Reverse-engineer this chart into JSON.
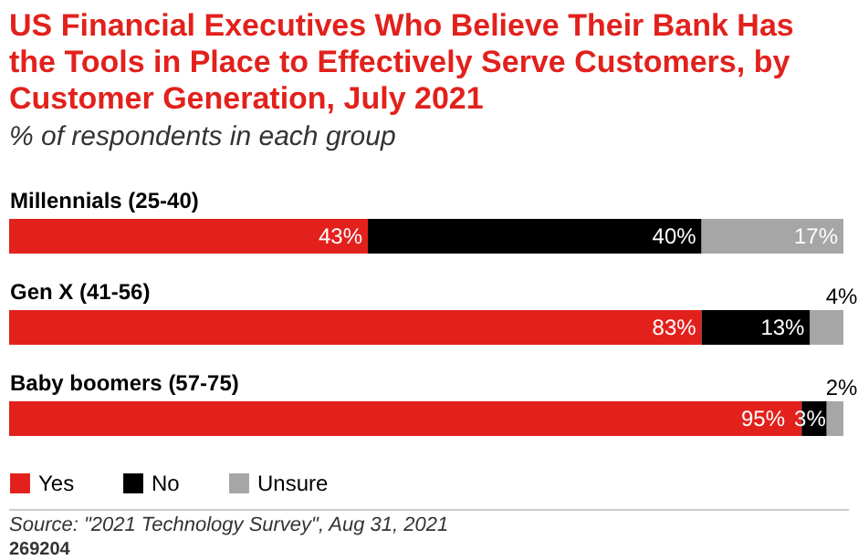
{
  "chart_data": {
    "type": "bar",
    "orientation": "horizontal",
    "stacked": true,
    "title": "US Financial Executives Who Believe Their Bank Has the Tools in Place to Effectively Serve Customers, by Customer Generation, July 2021",
    "subtitle": "% of respondents in each group",
    "categories": [
      "Millennials (25-40)",
      "Gen X (41-56)",
      "Baby boomers (57-75)"
    ],
    "series": [
      {
        "name": "Yes",
        "color": "#e2211c",
        "values": [
          43,
          83,
          95
        ],
        "value_labels": [
          "43%",
          "83%",
          "95%"
        ]
      },
      {
        "name": "No",
        "color": "#000000",
        "values": [
          40,
          13,
          3
        ],
        "value_labels": [
          "40%",
          "13%",
          "3%"
        ]
      },
      {
        "name": "Unsure",
        "color": "#a6a6a6",
        "values": [
          17,
          4,
          2
        ],
        "value_labels": [
          "17%",
          "4%",
          "2%"
        ]
      }
    ],
    "legend": "bottom left",
    "annotations": [
      "Source: \"2021 Technology Survey\", Aug 31, 2021",
      "269204"
    ]
  }
}
